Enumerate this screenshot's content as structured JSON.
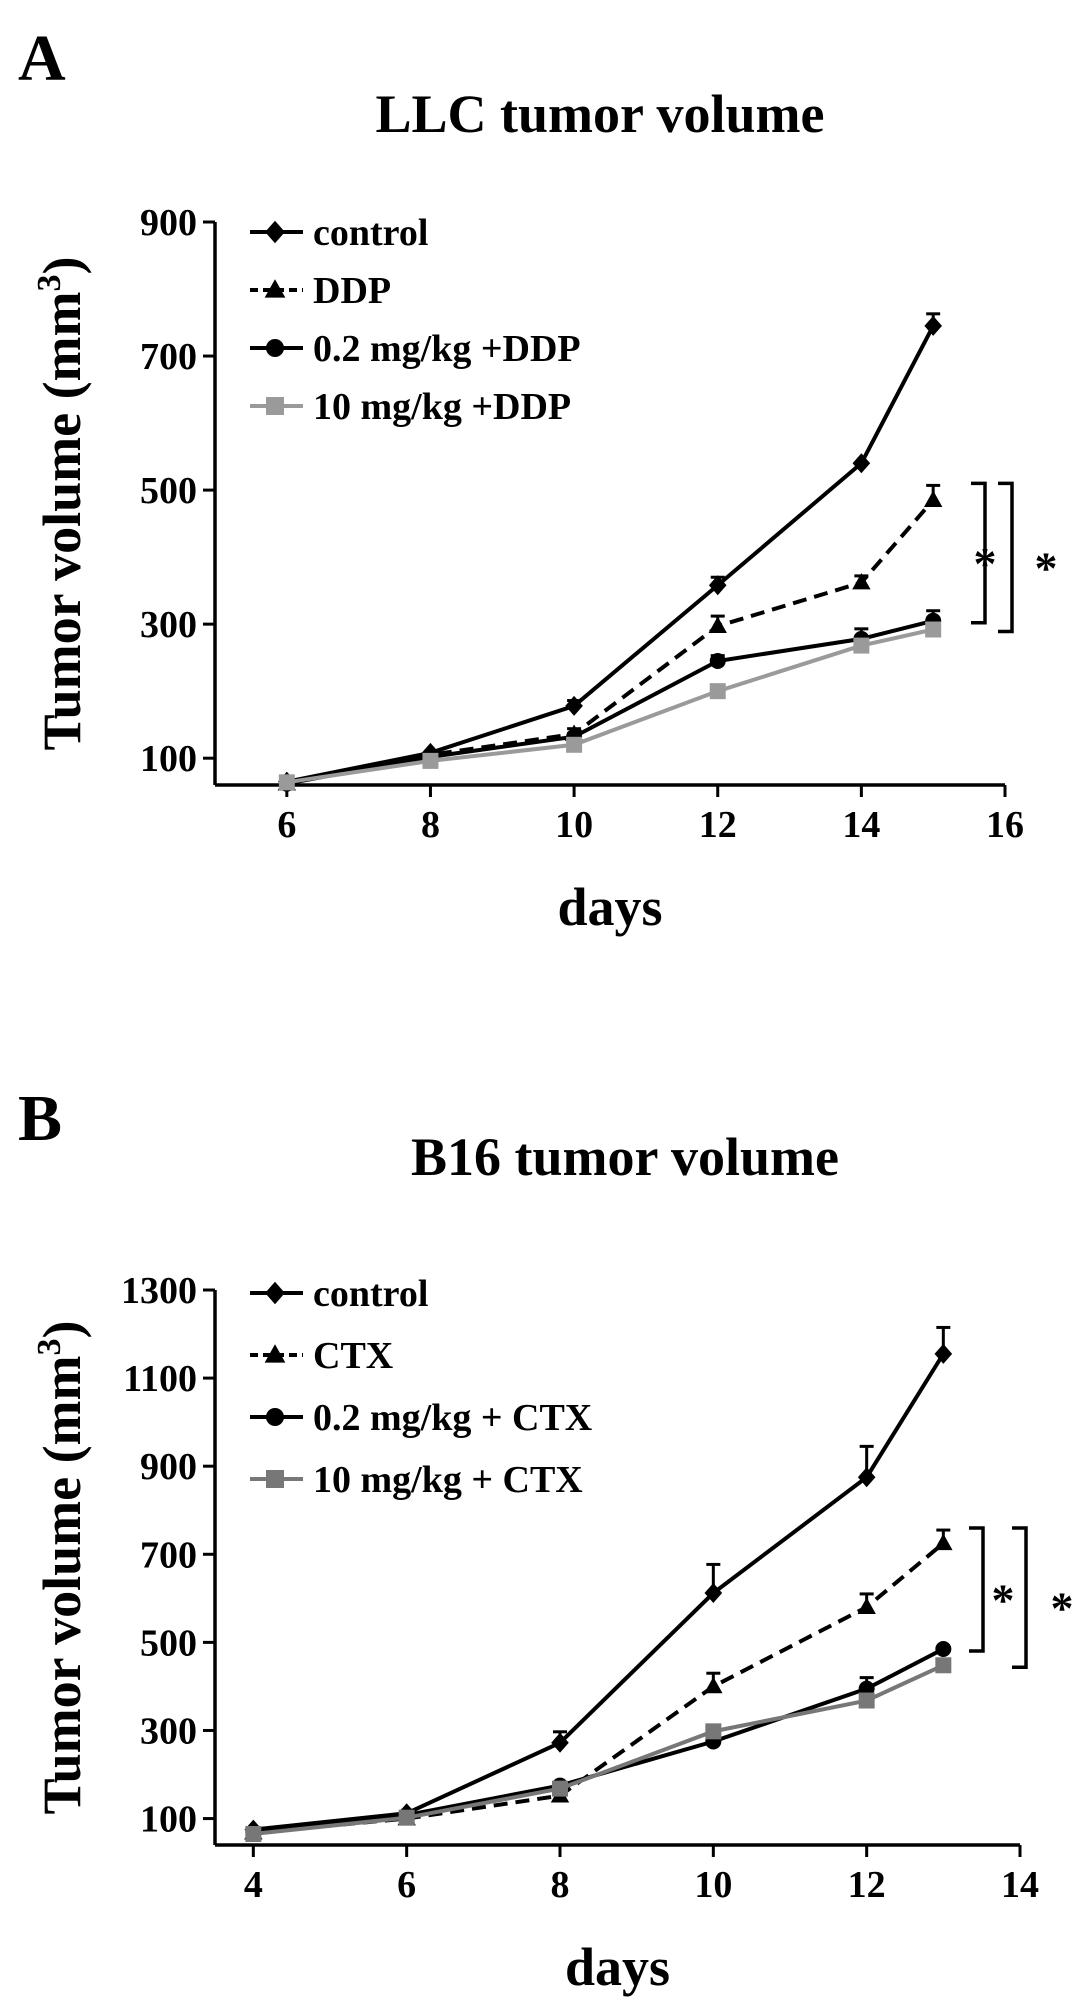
{
  "chart_data": [
    {
      "panel_letter": "A",
      "type": "line",
      "title": "LLC tumor volume",
      "xlabel": "days",
      "ylabel": "Tumor volume (mm",
      "ylabel_sup": "3",
      "ylabel_close": ")",
      "xlim": [
        5,
        16
      ],
      "ylim": [
        60,
        900
      ],
      "xticks": [
        6,
        8,
        10,
        12,
        14,
        16
      ],
      "yticks": [
        100,
        300,
        500,
        700,
        900
      ],
      "grid": false,
      "legend_position": "top-left",
      "significance_marks": [
        "*",
        "*"
      ],
      "x": [
        6,
        8,
        10,
        12,
        14,
        15
      ],
      "series": [
        {
          "name": "control",
          "marker": "diamond",
          "dash": "solid",
          "color": "#000000",
          "values": [
            65,
            108,
            178,
            358,
            540,
            745
          ],
          "errors": [
            0,
            0,
            8,
            12,
            0,
            18
          ]
        },
        {
          "name": "DDP",
          "marker": "triangle",
          "dash": "dashed",
          "color": "#000000",
          "values": [
            62,
            105,
            136,
            297,
            362,
            485
          ],
          "errors": [
            0,
            0,
            8,
            15,
            10,
            22
          ]
        },
        {
          "name": "0.2 mg/kg +DDP",
          "marker": "circle",
          "dash": "solid",
          "color": "#000000",
          "values": [
            62,
            102,
            132,
            245,
            278,
            305
          ],
          "errors": [
            0,
            0,
            5,
            8,
            15,
            15
          ]
        },
        {
          "name": "10 mg/kg +DDP",
          "marker": "square",
          "dash": "solid",
          "color": "#9a9a9a",
          "values": [
            64,
            96,
            120,
            200,
            268,
            292
          ],
          "errors": [
            0,
            0,
            0,
            0,
            0,
            0
          ]
        }
      ]
    },
    {
      "panel_letter": "B",
      "type": "line",
      "title": "B16 tumor volume",
      "xlabel": "days",
      "ylabel": "Tumor volume (mm",
      "ylabel_sup": "3",
      "ylabel_close": ")",
      "xlim": [
        3.5,
        14
      ],
      "ylim": [
        40,
        1300
      ],
      "xticks": [
        4,
        6,
        8,
        10,
        12,
        14
      ],
      "yticks": [
        100,
        300,
        500,
        700,
        900,
        1100,
        1300
      ],
      "grid": false,
      "legend_position": "top-left",
      "significance_marks": [
        "*",
        "*"
      ],
      "x": [
        4,
        6,
        8,
        10,
        12,
        13
      ],
      "series": [
        {
          "name": "control",
          "marker": "diamond",
          "dash": "solid",
          "color": "#000000",
          "values": [
            75,
            112,
            272,
            612,
            875,
            1155
          ],
          "errors": [
            0,
            0,
            25,
            65,
            70,
            60
          ]
        },
        {
          "name": "CTX",
          "marker": "triangle",
          "dash": "dashed",
          "color": "#000000",
          "values": [
            68,
            100,
            152,
            400,
            580,
            725
          ],
          "errors": [
            0,
            0,
            0,
            30,
            30,
            30
          ]
        },
        {
          "name": "0.2 mg/kg + CTX",
          "marker": "circle",
          "dash": "solid",
          "color": "#000000",
          "values": [
            70,
            108,
            175,
            275,
            395,
            485
          ],
          "errors": [
            0,
            0,
            0,
            25,
            25,
            0
          ]
        },
        {
          "name": "10 mg/kg + CTX",
          "marker": "square",
          "dash": "solid",
          "color": "#777777",
          "values": [
            65,
            102,
            168,
            298,
            368,
            448
          ],
          "errors": [
            0,
            0,
            0,
            0,
            0,
            0
          ]
        }
      ]
    }
  ]
}
